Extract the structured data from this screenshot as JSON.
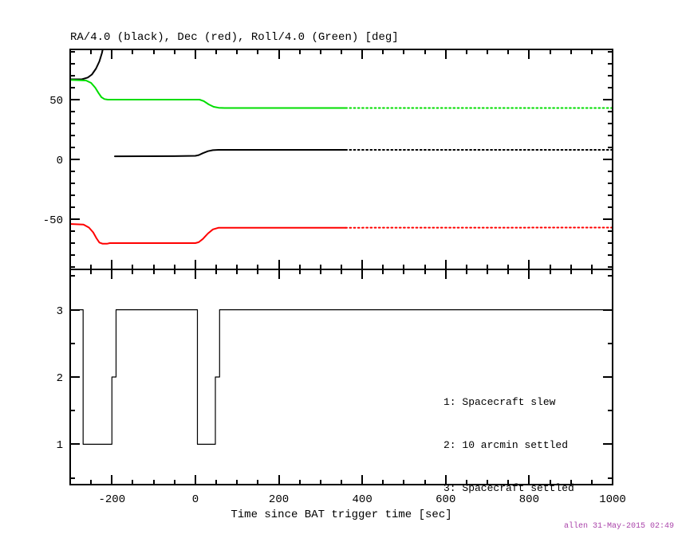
{
  "xlabel": "Time since BAT trigger time [sec]",
  "watermark": "allen 31-May-2015 02:49",
  "colors": {
    "axis": "#000000",
    "ra_black": "#000000",
    "dec_red": "#ff0000",
    "roll_green": "#00dd00",
    "watermark": "#aa44aa"
  },
  "chart_data": [
    {
      "type": "line",
      "title": "RA/4.0 (black), Dec (red), Roll/4.0 (Green) [deg]",
      "xlim": [
        -300,
        1000
      ],
      "ylim": [
        -92,
        92
      ],
      "xticks": [
        -200,
        0,
        200,
        400,
        600,
        800,
        1000
      ],
      "xtick_minor_step": 50,
      "x_labels_visible": false,
      "yticks": [
        50,
        0,
        -50
      ],
      "ytick_minor_step": 10,
      "grid": false,
      "series": [
        {
          "name": "RA-div-4-black",
          "color": "#000000",
          "width": 2,
          "dash_from": 360,
          "segments": [
            [
              [
                -300,
                67
              ],
              [
                -272,
                67
              ],
              [
                -258,
                68.5
              ],
              [
                -248,
                71
              ],
              [
                -238,
                76
              ],
              [
                -230,
                82
              ],
              [
                -224,
                89
              ],
              [
                -219,
                97
              ],
              [
                -215,
                106
              ]
            ],
            [
              [
                -193,
                2.6
              ],
              [
                -50,
                2.7
              ],
              [
                0,
                3
              ],
              [
                8,
                3.6
              ],
              [
                18,
                5.2
              ],
              [
                30,
                6.9
              ],
              [
                42,
                7.7
              ],
              [
                55,
                8
              ],
              [
                1000,
                8
              ]
            ]
          ]
        },
        {
          "name": "Dec-red",
          "color": "#ff0000",
          "width": 2,
          "dash_from": 360,
          "segments": [
            [
              [
                -300,
                -54
              ],
              [
                -268,
                -54.5
              ],
              [
                -255,
                -57
              ],
              [
                -245,
                -61
              ],
              [
                -237,
                -66
              ],
              [
                -230,
                -69.5
              ],
              [
                -222,
                -70.5
              ],
              [
                -212,
                -70.5
              ],
              [
                -205,
                -70
              ],
              [
                0,
                -70
              ],
              [
                8,
                -69.3
              ],
              [
                18,
                -66.5
              ],
              [
                30,
                -62
              ],
              [
                42,
                -58.5
              ],
              [
                55,
                -57.2
              ],
              [
                1000,
                -57
              ]
            ]
          ]
        },
        {
          "name": "Roll-div-4-green",
          "color": "#00dd00",
          "width": 2,
          "dash_from": 360,
          "segments": [
            [
              [
                -300,
                66.5
              ],
              [
                -262,
                66
              ],
              [
                -250,
                64
              ],
              [
                -240,
                60
              ],
              [
                -232,
                55.5
              ],
              [
                -225,
                52
              ],
              [
                -218,
                50.5
              ],
              [
                -210,
                50
              ],
              [
                10,
                50
              ],
              [
                20,
                48.8
              ],
              [
                32,
                46
              ],
              [
                44,
                44
              ],
              [
                56,
                43.2
              ],
              [
                70,
                43
              ],
              [
                1000,
                43
              ]
            ]
          ]
        }
      ]
    },
    {
      "type": "line",
      "title": "",
      "xlim": [
        -300,
        1000
      ],
      "ylim": [
        0.4,
        3.6
      ],
      "xticks": [
        -200,
        0,
        200,
        400,
        600,
        800,
        1000
      ],
      "xtick_minor_step": 50,
      "x_labels_visible": true,
      "yticks": [
        1,
        2,
        3
      ],
      "ytick_minor_step": 0.5,
      "grid": false,
      "annotations": [
        "1: Spacecraft slew",
        "2: 10 arcmin settled",
        "3: Spacecraft settled"
      ],
      "series": [
        {
          "name": "settled-state-step",
          "color": "#000000",
          "width": 1.2,
          "segments": [
            [
              [
                -300,
                3
              ],
              [
                -269,
                3
              ],
              [
                -269,
                1
              ],
              [
                -200,
                1
              ],
              [
                -200,
                2
              ],
              [
                -190,
                2
              ],
              [
                -190,
                3
              ],
              [
                5,
                3
              ],
              [
                5,
                1
              ],
              [
                48,
                1
              ],
              [
                48,
                2
              ],
              [
                58,
                2
              ],
              [
                58,
                3
              ],
              [
                1000,
                3
              ]
            ]
          ]
        }
      ]
    }
  ]
}
